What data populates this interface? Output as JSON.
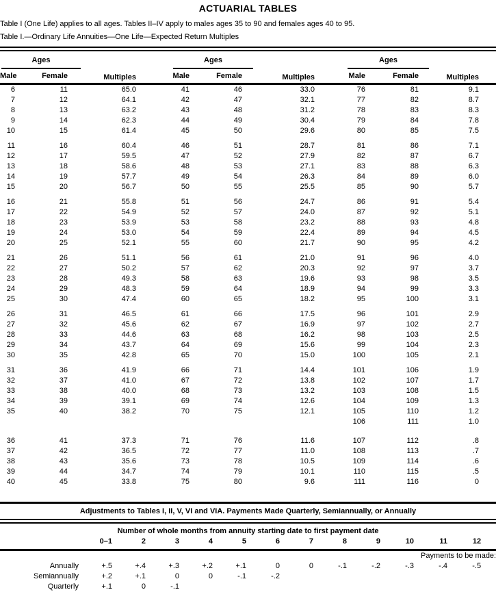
{
  "page": {
    "title": "ACTUARIAL TABLES",
    "intro": "Table I (One Life) applies to all ages. Tables II–IV apply to males ages 35 to 90 and females ages 40 to 95.",
    "caption": "Table I.—Ordinary Life Annuities—One Life—Expected Return Multiples"
  },
  "table1": {
    "headers": {
      "ages": "Ages",
      "male": "Male",
      "female": "Female",
      "multiples": "Multiples"
    },
    "blocks": [
      [
        [
          "6",
          "11",
          "65.0",
          "41",
          "46",
          "33.0",
          "76",
          "81",
          "9.1"
        ],
        [
          "7",
          "12",
          "64.1",
          "42",
          "47",
          "32.1",
          "77",
          "82",
          "8.7"
        ],
        [
          "8",
          "13",
          "63.2",
          "43",
          "48",
          "31.2",
          "78",
          "83",
          "8.3"
        ],
        [
          "9",
          "14",
          "62.3",
          "44",
          "49",
          "30.4",
          "79",
          "84",
          "7.8"
        ],
        [
          "10",
          "15",
          "61.4",
          "45",
          "50",
          "29.6",
          "80",
          "85",
          "7.5"
        ]
      ],
      [
        [
          "11",
          "16",
          "60.4",
          "46",
          "51",
          "28.7",
          "81",
          "86",
          "7.1"
        ],
        [
          "12",
          "17",
          "59.5",
          "47",
          "52",
          "27.9",
          "82",
          "87",
          "6.7"
        ],
        [
          "13",
          "18",
          "58.6",
          "48",
          "53",
          "27.1",
          "83",
          "88",
          "6.3"
        ],
        [
          "14",
          "19",
          "57.7",
          "49",
          "54",
          "26.3",
          "84",
          "89",
          "6.0"
        ],
        [
          "15",
          "20",
          "56.7",
          "50",
          "55",
          "25.5",
          "85",
          "90",
          "5.7"
        ]
      ],
      [
        [
          "16",
          "21",
          "55.8",
          "51",
          "56",
          "24.7",
          "86",
          "91",
          "5.4"
        ],
        [
          "17",
          "22",
          "54.9",
          "52",
          "57",
          "24.0",
          "87",
          "92",
          "5.1"
        ],
        [
          "18",
          "23",
          "53.9",
          "53",
          "58",
          "23.2",
          "88",
          "93",
          "4.8"
        ],
        [
          "19",
          "24",
          "53.0",
          "54",
          "59",
          "22.4",
          "89",
          "94",
          "4.5"
        ],
        [
          "20",
          "25",
          "52.1",
          "55",
          "60",
          "21.7",
          "90",
          "95",
          "4.2"
        ]
      ],
      [
        [
          "21",
          "26",
          "51.1",
          "56",
          "61",
          "21.0",
          "91",
          "96",
          "4.0"
        ],
        [
          "22",
          "27",
          "50.2",
          "57",
          "62",
          "20.3",
          "92",
          "97",
          "3.7"
        ],
        [
          "23",
          "28",
          "49.3",
          "58",
          "63",
          "19.6",
          "93",
          "98",
          "3.5"
        ],
        [
          "24",
          "29",
          "48.3",
          "59",
          "64",
          "18.9",
          "94",
          "99",
          "3.3"
        ],
        [
          "25",
          "30",
          "47.4",
          "60",
          "65",
          "18.2",
          "95",
          "100",
          "3.1"
        ]
      ],
      [
        [
          "26",
          "31",
          "46.5",
          "61",
          "66",
          "17.5",
          "96",
          "101",
          "2.9"
        ],
        [
          "27",
          "32",
          "45.6",
          "62",
          "67",
          "16.9",
          "97",
          "102",
          "2.7"
        ],
        [
          "28",
          "33",
          "44.6",
          "63",
          "68",
          "16.2",
          "98",
          "103",
          "2.5"
        ],
        [
          "29",
          "34",
          "43.7",
          "64",
          "69",
          "15.6",
          "99",
          "104",
          "2.3"
        ],
        [
          "30",
          "35",
          "42.8",
          "65",
          "70",
          "15.0",
          "100",
          "105",
          "2.1"
        ]
      ],
      [
        [
          "31",
          "36",
          "41.9",
          "66",
          "71",
          "14.4",
          "101",
          "106",
          "1.9"
        ],
        [
          "32",
          "37",
          "41.0",
          "67",
          "72",
          "13.8",
          "102",
          "107",
          "1.7"
        ],
        [
          "33",
          "38",
          "40.0",
          "68",
          "73",
          "13.2",
          "103",
          "108",
          "1.5"
        ],
        [
          "34",
          "39",
          "39.1",
          "69",
          "74",
          "12.6",
          "104",
          "109",
          "1.3"
        ],
        [
          "35",
          "40",
          "38.2",
          "70",
          "75",
          "12.1",
          "105",
          "110",
          "1.2"
        ],
        [
          "",
          "",
          "",
          "",
          "",
          "",
          "106",
          "111",
          "1.0"
        ]
      ],
      [
        [
          "36",
          "41",
          "37.3",
          "71",
          "76",
          "11.6",
          "107",
          "112",
          ".8"
        ],
        [
          "37",
          "42",
          "36.5",
          "72",
          "77",
          "11.0",
          "108",
          "113",
          ".7"
        ],
        [
          "38",
          "43",
          "35.6",
          "73",
          "78",
          "10.5",
          "109",
          "114",
          ".6"
        ],
        [
          "39",
          "44",
          "34.7",
          "74",
          "79",
          "10.1",
          "110",
          "115",
          ".5"
        ],
        [
          "40",
          "45",
          "33.8",
          "75",
          "80",
          "9.6",
          "111",
          "116",
          "0"
        ]
      ]
    ]
  },
  "adjustments": {
    "title": "Adjustments to Tables I, II, V, VI and VIA. Payments Made Quarterly, Semiannually, or Annually",
    "months_header": "Number of whole months from annuity starting date to first payment date",
    "months": [
      "0–1",
      "2",
      "3",
      "4",
      "5",
      "6",
      "7",
      "8",
      "9",
      "10",
      "11",
      "12"
    ],
    "group_label": "Payments to be made:",
    "rows": [
      {
        "label": "Annually",
        "values": [
          "+.5",
          "+.4",
          "+.3",
          "+.2",
          "+.1",
          "0",
          "0",
          "-.1",
          "-.2",
          "-.3",
          "-.4",
          "-.5"
        ]
      },
      {
        "label": "Semiannually",
        "values": [
          "+.2",
          "+.1",
          "0",
          "0",
          "-.1",
          "-.2",
          "",
          "",
          "",
          "",
          "",
          ""
        ]
      },
      {
        "label": "Quarterly",
        "values": [
          "+.1",
          "0",
          "-.1",
          "",
          "",
          "",
          "",
          "",
          "",
          "",
          "",
          ""
        ]
      }
    ]
  }
}
